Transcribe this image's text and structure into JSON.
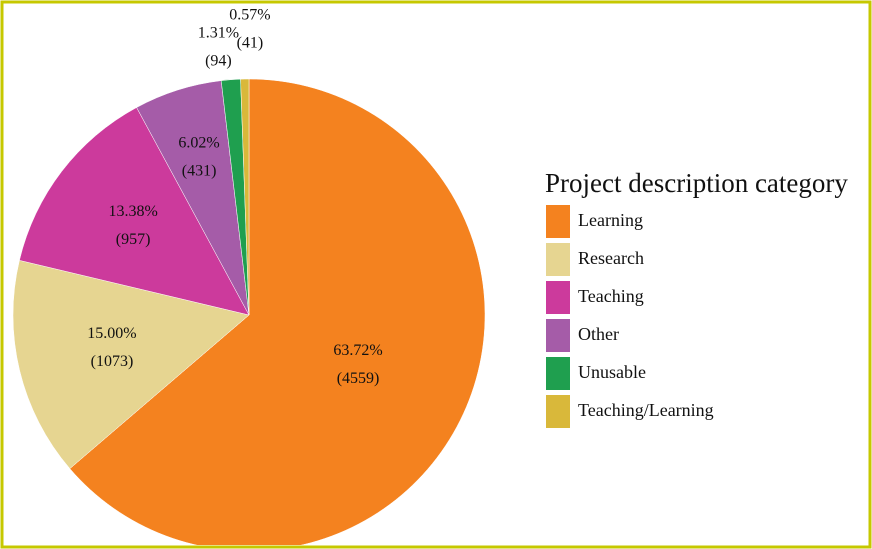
{
  "chart_data": {
    "type": "pie",
    "legend_title": "Project description category",
    "categories": [
      "Learning",
      "Research",
      "Teaching",
      "Other",
      "Unusable",
      "Teaching/Learning"
    ],
    "values": [
      63.72,
      15.0,
      13.38,
      6.02,
      1.31,
      0.57
    ],
    "value_labels": [
      "63.72%",
      "15.00%",
      "13.38%",
      "6.02%",
      "1.31%",
      "0.57%"
    ],
    "counts": [
      4559,
      1073,
      957,
      431,
      94,
      41
    ],
    "count_labels": [
      "(4559)",
      "(1073)",
      "(957)",
      "(431)",
      "(94)",
      "(41)"
    ],
    "colors": [
      "#f4821f",
      "#e6d591",
      "#cc3a9c",
      "#a55ca8",
      "#1f9f4f",
      "#d9b83a"
    ],
    "legend": "right"
  }
}
